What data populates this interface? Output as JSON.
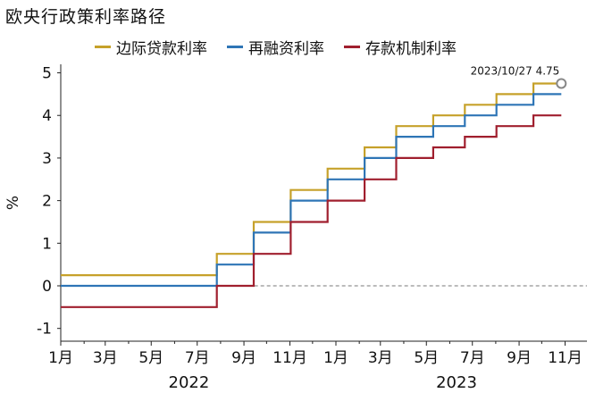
{
  "title": "欧央行政策利率路径",
  "colors": {
    "mlf": "#C6A12A",
    "mro": "#2E75B6",
    "dfr": "#A01F2E",
    "zero": "#777777"
  },
  "legend": [
    "边际贷款利率",
    "再融资利率",
    "存款机制利率"
  ],
  "chart_data": {
    "type": "line",
    "title": "欧央行政策利率路径",
    "ylabel": "%",
    "ylim": [
      -1.3,
      5.2
    ],
    "yticks": [
      "5",
      "4",
      "3",
      "2",
      "1",
      "0",
      "-1"
    ],
    "xticks": [
      "1月",
      "3月",
      "5月",
      "7月",
      "9月",
      "11月",
      "1月",
      "3月",
      "5月",
      "7月",
      "9月",
      "11月"
    ],
    "years": [
      "2022",
      "2023"
    ],
    "xlim": [
      "2022-01-01",
      "2023-11-30"
    ],
    "annotation": {
      "label": "2023/10/27  4.75",
      "x": "2023-10-27",
      "y": 4.75
    },
    "series": [
      {
        "name": "边际贷款利率",
        "points": [
          [
            "2022-01-01",
            0.25
          ],
          [
            "2022-07-27",
            0.75
          ],
          [
            "2022-09-14",
            1.5
          ],
          [
            "2022-11-02",
            2.25
          ],
          [
            "2022-12-21",
            2.75
          ],
          [
            "2023-02-08",
            3.25
          ],
          [
            "2023-03-22",
            3.75
          ],
          [
            "2023-05-10",
            4.0
          ],
          [
            "2023-06-21",
            4.25
          ],
          [
            "2023-08-02",
            4.5
          ],
          [
            "2023-09-20",
            4.75
          ],
          [
            "2023-10-27",
            4.75
          ]
        ]
      },
      {
        "name": "再融资利率",
        "points": [
          [
            "2022-01-01",
            0.0
          ],
          [
            "2022-07-27",
            0.5
          ],
          [
            "2022-09-14",
            1.25
          ],
          [
            "2022-11-02",
            2.0
          ],
          [
            "2022-12-21",
            2.5
          ],
          [
            "2023-02-08",
            3.0
          ],
          [
            "2023-03-22",
            3.5
          ],
          [
            "2023-05-10",
            3.75
          ],
          [
            "2023-06-21",
            4.0
          ],
          [
            "2023-08-02",
            4.25
          ],
          [
            "2023-09-20",
            4.5
          ],
          [
            "2023-10-27",
            4.5
          ]
        ]
      },
      {
        "name": "存款机制利率",
        "points": [
          [
            "2022-01-01",
            -0.5
          ],
          [
            "2022-07-27",
            0.0
          ],
          [
            "2022-09-14",
            0.75
          ],
          [
            "2022-11-02",
            1.5
          ],
          [
            "2022-12-21",
            2.0
          ],
          [
            "2023-02-08",
            2.5
          ],
          [
            "2023-03-22",
            3.0
          ],
          [
            "2023-05-10",
            3.25
          ],
          [
            "2023-06-21",
            3.5
          ],
          [
            "2023-08-02",
            3.75
          ],
          [
            "2023-09-20",
            4.0
          ],
          [
            "2023-10-27",
            4.0
          ]
        ]
      }
    ]
  }
}
